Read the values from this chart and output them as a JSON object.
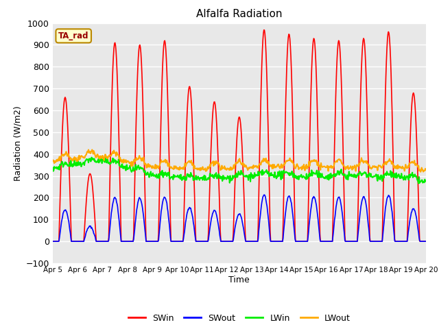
{
  "title": "Alfalfa Radiation",
  "xlabel": "Time",
  "ylabel": "Radiation (W/m2)",
  "ylim": [
    -100,
    1000
  ],
  "yticks": [
    -100,
    0,
    100,
    200,
    300,
    400,
    500,
    600,
    700,
    800,
    900,
    1000
  ],
  "n_days": 15,
  "pts_per_day": 48,
  "sw_in_peaks": [
    660,
    310,
    910,
    900,
    920,
    710,
    640,
    570,
    970,
    950,
    930,
    920,
    930,
    960,
    680
  ],
  "colors": {
    "SWin": "#ff0000",
    "SWout": "#0000ff",
    "LWin": "#00ee00",
    "LWout": "#ffaa00"
  },
  "line_widths": {
    "SWin": 1.2,
    "SWout": 1.2,
    "LWin": 1.5,
    "LWout": 1.5
  },
  "legend_labels": [
    "SWin",
    "SWout",
    "LWin",
    "LWout"
  ],
  "annotation_text": "TA_rad",
  "plot_bg_color": "#e8e8e8",
  "fig_bg_color": "#ffffff",
  "date_labels": [
    "Apr 5",
    "Apr 6",
    "Apr 7",
    "Apr 8",
    "Apr 9",
    "Apr 10",
    "Apr 11",
    "Apr 12",
    "Apr 13",
    "Apr 14",
    "Apr 15",
    "Apr 16",
    "Apr 17",
    "Apr 18",
    "Apr 19",
    "Apr 20"
  ],
  "figsize": [
    6.4,
    4.8
  ],
  "dpi": 100
}
